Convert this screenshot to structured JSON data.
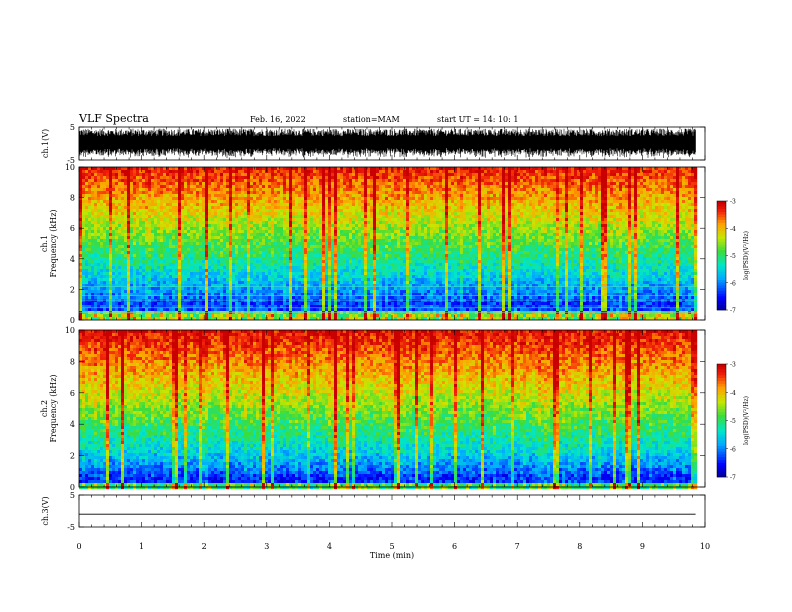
{
  "header": {
    "title": "VLF Spectra",
    "date": "Feb. 16, 2022",
    "station": "station=MAM",
    "start": "start  UT  =   14: 10: 1"
  },
  "colors": {
    "axis": "#000000",
    "background": "#ffffff"
  },
  "chart_data": [
    {
      "type": "line",
      "name": "ch1-waveform",
      "ylabel": "ch.1(V)",
      "ylim": [
        -5,
        5
      ],
      "yticks": [
        "5",
        "-5"
      ],
      "xlim": [
        0,
        10
      ],
      "data_end": 9.85,
      "note": "dense noise trace spanning approx -4.5 to 4.5 V"
    },
    {
      "type": "heatmap",
      "name": "ch1-spectrogram",
      "ylabel_top": "ch.1",
      "ylabel": "Frequency (kHz)",
      "ylim": [
        0,
        10
      ],
      "yticks": [
        "0",
        "2",
        "4",
        "6",
        "8",
        "10"
      ],
      "xlim": [
        0,
        10
      ],
      "data_end": 9.85,
      "colorbar": {
        "ticks": [
          "-3",
          "-4",
          "-5",
          "-6",
          "-7"
        ],
        "label": "log(PSD)(V²/Hz)",
        "range": [
          -7,
          -3
        ]
      }
    },
    {
      "type": "heatmap",
      "name": "ch2-spectrogram",
      "ylabel_top": "ch.2",
      "ylabel": "Frequency (kHz)",
      "ylim": [
        0,
        10
      ],
      "yticks": [
        "0",
        "2",
        "4",
        "6",
        "8",
        "10"
      ],
      "xlim": [
        0,
        10
      ],
      "data_end": 9.85,
      "colorbar": {
        "ticks": [
          "-3",
          "-4",
          "-5",
          "-6",
          "-7"
        ],
        "label": "log(PSD)(V²/Hz)",
        "range": [
          -7,
          -3
        ]
      }
    },
    {
      "type": "line",
      "name": "ch3-waveform",
      "ylabel": "ch.3(V)",
      "ylim": [
        -5,
        5
      ],
      "yticks": [
        "5",
        "-5"
      ],
      "xlim": [
        0,
        10
      ],
      "data_end": 9.85,
      "x": [
        0,
        9.85
      ],
      "y": [
        -1.0,
        -1.0
      ]
    }
  ],
  "xaxis": {
    "label": "Time (min)",
    "ticks": [
      "0",
      "1",
      "2",
      "3",
      "4",
      "5",
      "6",
      "7",
      "8",
      "9",
      "10"
    ]
  }
}
